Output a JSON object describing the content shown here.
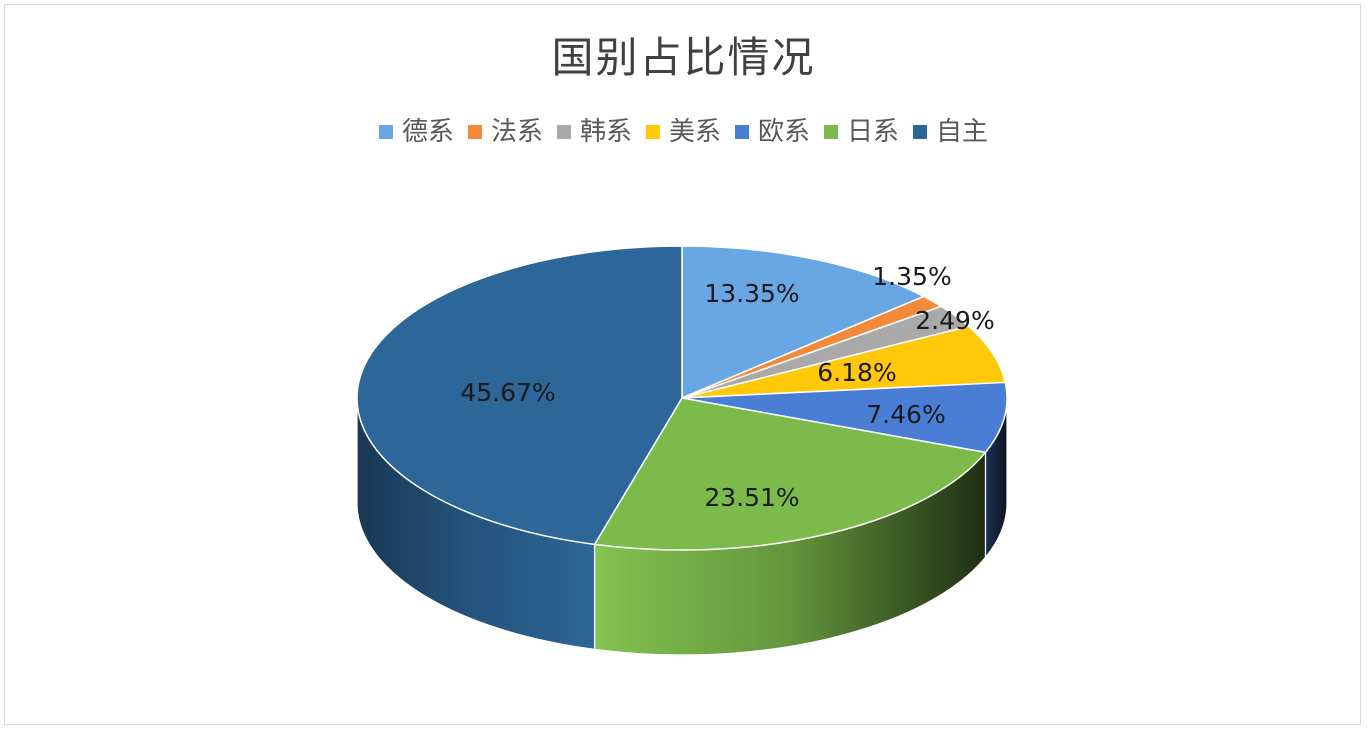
{
  "chart_data": {
    "type": "pie",
    "title": "国别占比情况",
    "legend_position": "top",
    "slices": [
      {
        "name": "德系",
        "value": 13.35,
        "label": "13.35%",
        "color": "#68A6E4"
      },
      {
        "name": "法系",
        "value": 1.35,
        "label": "1.35%",
        "color": "#F4893A"
      },
      {
        "name": "韩系",
        "value": 2.49,
        "label": "2.49%",
        "color": "#A9A9A9"
      },
      {
        "name": "美系",
        "value": 6.18,
        "label": "6.18%",
        "color": "#FFC90A"
      },
      {
        "name": "欧系",
        "value": 7.46,
        "label": "7.46%",
        "color": "#4A7ED4"
      },
      {
        "name": "日系",
        "value": 23.51,
        "label": "23.51%",
        "color": "#7DBA4C"
      },
      {
        "name": "自主",
        "value": 45.67,
        "label": "45.67%",
        "color": "#2D6698"
      }
    ]
  }
}
